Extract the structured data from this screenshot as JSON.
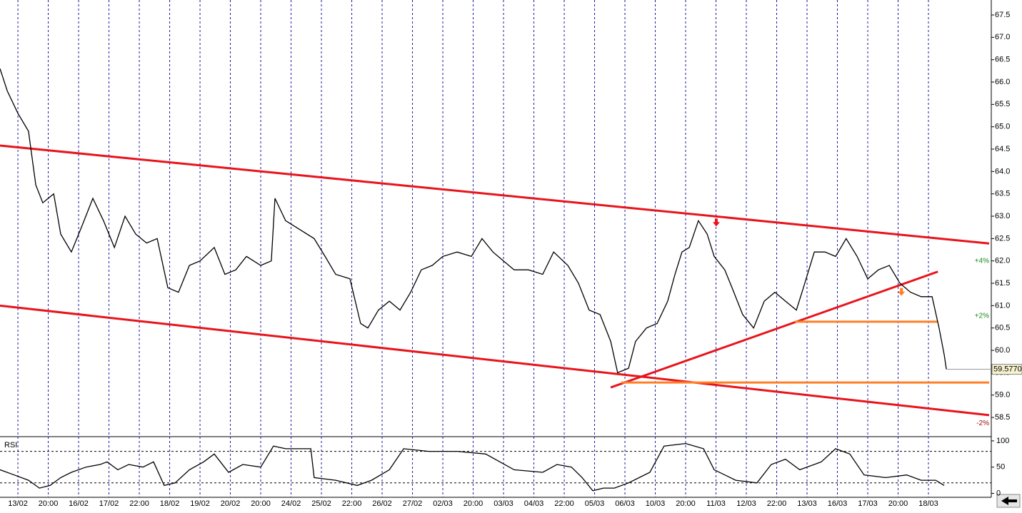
{
  "chart_data": [
    {
      "type": "line",
      "xlim": [
        -5.9,
        320
      ],
      "ylim": [
        58.07,
        67.835
      ],
      "xticks": [
        {
          "value": 0,
          "label": "13/02"
        },
        {
          "value": 10,
          "label": "20:00"
        },
        {
          "value": 20,
          "label": "16/02"
        },
        {
          "value": 30,
          "label": "17/02"
        },
        {
          "value": 40,
          "label": "22:00"
        },
        {
          "value": 50,
          "label": "18/02"
        },
        {
          "value": 60,
          "label": "19/02"
        },
        {
          "value": 70,
          "label": "20/02"
        },
        {
          "value": 80,
          "label": "20:00"
        },
        {
          "value": 90,
          "label": "24/02"
        },
        {
          "value": 100,
          "label": "25/02"
        },
        {
          "value": 110,
          "label": "22:00"
        },
        {
          "value": 120,
          "label": "26/02"
        },
        {
          "value": 130,
          "label": "27/02"
        },
        {
          "value": 140,
          "label": "02/03"
        },
        {
          "value": 150,
          "label": "20:00"
        },
        {
          "value": 160,
          "label": "03/03"
        },
        {
          "value": 170,
          "label": "04/03"
        },
        {
          "value": 180,
          "label": "22:00"
        },
        {
          "value": 190,
          "label": "05/03"
        },
        {
          "value": 200,
          "label": "06/03"
        },
        {
          "value": 210,
          "label": "10/03"
        },
        {
          "value": 220,
          "label": "20:00"
        },
        {
          "value": 230,
          "label": "11/03"
        },
        {
          "value": 240,
          "label": "12/03"
        },
        {
          "value": 250,
          "label": "22:00"
        },
        {
          "value": 260,
          "label": "13/03"
        },
        {
          "value": 270,
          "label": "16/03"
        },
        {
          "value": 280,
          "label": "17/03"
        },
        {
          "value": 290,
          "label": "20:00"
        },
        {
          "value": 300,
          "label": "18/03"
        }
      ],
      "yticks": [
        58.5,
        {
          "value": 59,
          "label": "59.0"
        },
        59.5,
        {
          "value": 60,
          "label": "60.0"
        },
        60.5,
        {
          "value": 61,
          "label": "61.0"
        },
        61.5,
        {
          "value": 62,
          "label": "62.0"
        },
        62.5,
        {
          "value": 63,
          "label": "63.0"
        },
        63.5,
        {
          "value": 64,
          "label": "64.0"
        },
        64.5,
        {
          "value": 65,
          "label": "65.0"
        },
        65.5,
        {
          "value": 66,
          "label": "66.0"
        },
        66.5,
        {
          "value": 67,
          "label": "67.0"
        },
        67.5
      ],
      "grid": true,
      "color": "#000000",
      "x": [
        -5.9,
        -3.5,
        0,
        3.5,
        5.9,
        8.2,
        11.8,
        14.1,
        17.6,
        21.2,
        24.7,
        28.2,
        31.8,
        35.3,
        38.8,
        42.4,
        45.9,
        49.4,
        52.9,
        56.5,
        60,
        64.7,
        68.2,
        71.8,
        75.3,
        80,
        83.5,
        84.7,
        88.2,
        92.9,
        97.6,
        101.2,
        104.7,
        109.4,
        112.9,
        115.3,
        118.8,
        122.4,
        125.9,
        129.4,
        132.9,
        136.5,
        140,
        144.7,
        149.4,
        152.9,
        156.5,
        160,
        163.5,
        168.2,
        172.9,
        176.5,
        181.2,
        184.7,
        188.2,
        191.8,
        195.3,
        197.6,
        201.2,
        203.5,
        207.1,
        210.6,
        214.1,
        216.5,
        218.8,
        221.2,
        224.2,
        227.1,
        229.4,
        232.9,
        235.3,
        238.8,
        242.4,
        245.9,
        249.4,
        252.9,
        256.5,
        258.8,
        262.4,
        265.9,
        269.4,
        272.9,
        276.5,
        280,
        283.5,
        287.1,
        290.6,
        294.1,
        297.6,
        301.2,
        303.5,
        305.2,
        305.9
      ],
      "values": [
        66.3,
        65.8,
        65.3,
        64.9,
        63.7,
        63.3,
        63.5,
        62.6,
        62.2,
        62.8,
        63.4,
        62.9,
        62.3,
        63.0,
        62.6,
        62.4,
        62.5,
        61.4,
        61.3,
        61.9,
        62.0,
        62.3,
        61.7,
        61.8,
        62.1,
        61.9,
        62.0,
        63.4,
        62.9,
        62.7,
        62.5,
        62.1,
        61.7,
        61.6,
        60.6,
        60.5,
        60.9,
        61.1,
        60.9,
        61.3,
        61.8,
        61.9,
        62.1,
        62.2,
        62.1,
        62.5,
        62.2,
        62.0,
        61.8,
        61.8,
        61.7,
        62.2,
        61.9,
        61.5,
        60.9,
        60.8,
        60.2,
        59.5,
        59.6,
        60.2,
        60.5,
        60.6,
        61.1,
        61.7,
        62.2,
        62.3,
        62.9,
        62.6,
        62.1,
        61.8,
        61.4,
        60.8,
        60.5,
        61.1,
        61.3,
        61.1,
        60.9,
        61.4,
        62.2,
        62.2,
        62.1,
        62.5,
        62.1,
        61.6,
        61.8,
        61.9,
        61.5,
        61.3,
        61.2,
        61.2,
        60.5,
        59.9,
        59.577
      ],
      "last_value": {
        "value": 59.577,
        "label": "59.5770"
      },
      "trend_lines": [
        {
          "color": "#e8141c",
          "x": [
            -5.9,
            320
          ],
          "y": [
            64.58,
            62.39
          ]
        },
        {
          "color": "#e8141c",
          "x": [
            -5.9,
            320
          ],
          "y": [
            61.0,
            58.55
          ]
        },
        {
          "color": "#e8141c",
          "x": [
            195.3,
            303.1
          ],
          "y": [
            59.17,
            61.76
          ]
        },
        {
          "color": "#ff7f27",
          "x": [
            256,
            303.1
          ],
          "y": [
            60.64,
            60.64
          ]
        },
        {
          "color": "#ff7f27",
          "x": [
            198.8,
            320
          ],
          "y": [
            59.28,
            59.28
          ]
        }
      ],
      "markers": [
        {
          "color": "#e8141c",
          "x": 230.1,
          "y": 62.85
        },
        {
          "color": "#ff7f27",
          "x": 291.1,
          "y": 61.3
        }
      ],
      "annotations": [
        {
          "text": "+4%",
          "y": 62.0,
          "color": "#1a8a1a"
        },
        {
          "text": "+2%",
          "y": 60.77,
          "color": "#1a8a1a"
        },
        {
          "text": "-2%",
          "y": 58.37,
          "color": "#a01010"
        }
      ]
    },
    {
      "type": "line",
      "title": "RSI",
      "ylim": [
        -7.5,
        108
      ],
      "yticks": [
        0,
        50,
        100
      ],
      "levels": [
        20,
        80
      ],
      "color": "#000000",
      "x": [
        -5.9,
        -1.2,
        3.5,
        7.1,
        10.6,
        14.1,
        17.6,
        22.4,
        27.1,
        29.4,
        32.9,
        36.5,
        41.2,
        44.7,
        48.2,
        51.8,
        56.5,
        61.2,
        64.7,
        69.4,
        74.1,
        80,
        84.2,
        88.2,
        96.5,
        97.6,
        104.7,
        111.8,
        116.5,
        122.4,
        127.1,
        135.3,
        144.7,
        154.1,
        163.5,
        172.9,
        177.6,
        182.4,
        185.9,
        189.4,
        192.9,
        196.5,
        201.2,
        208.2,
        212.9,
        220,
        225.9,
        229.4,
        236.5,
        243.5,
        248.2,
        252.9,
        257.6,
        264.7,
        269.4,
        274.1,
        278.8,
        285.9,
        292.9,
        297.6,
        302.4,
        305.2
      ],
      "values": [
        45,
        35,
        25,
        10,
        15,
        30,
        40,
        50,
        55,
        60,
        45,
        55,
        50,
        60,
        15,
        20,
        45,
        60,
        75,
        40,
        55,
        50,
        90,
        85,
        85,
        30,
        25,
        15,
        25,
        45,
        85,
        80,
        80,
        75,
        45,
        40,
        55,
        50,
        30,
        5,
        10,
        10,
        20,
        40,
        90,
        95,
        85,
        45,
        25,
        20,
        55,
        65,
        45,
        60,
        85,
        75,
        35,
        30,
        35,
        25,
        25,
        15
      ]
    }
  ]
}
